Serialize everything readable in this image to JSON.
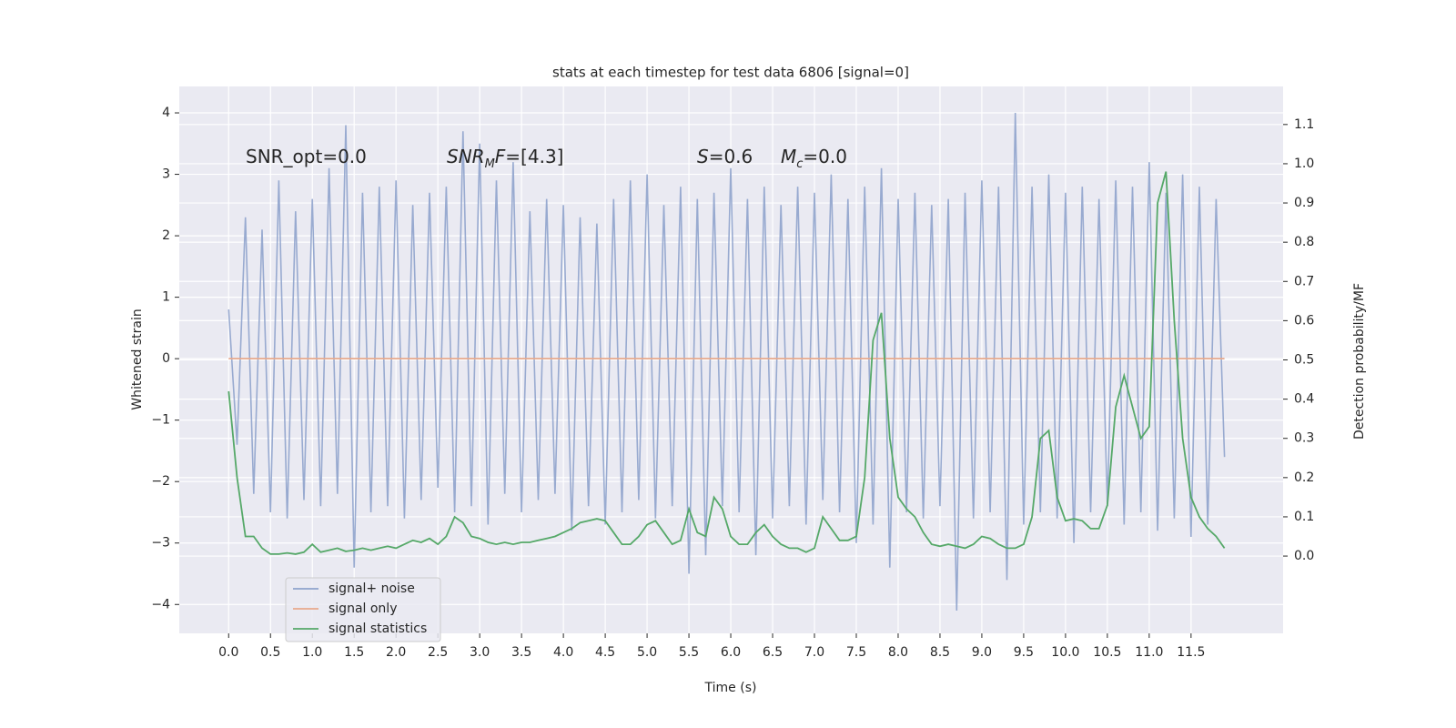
{
  "chart_data": {
    "type": "line",
    "title": "stats at each timestep for test data 6806 [signal=0]",
    "xlabel": "Time (s)",
    "ylabel": "Whitened strain",
    "y2label": "Detection probability/MF",
    "grid": true,
    "legend": "lower left",
    "background": "#eaeaf2",
    "xlim": [
      -0.59,
      12.6
    ],
    "ylim": [
      -4.47,
      4.43
    ],
    "y2lim": [
      -0.197,
      1.197
    ],
    "xticks": [
      {
        "value": 0,
        "label": "0.0"
      },
      0.5,
      {
        "value": 1,
        "label": "1.0"
      },
      1.5,
      {
        "value": 2,
        "label": "2.0"
      },
      2.5,
      {
        "value": 3,
        "label": "3.0"
      },
      3.5,
      {
        "value": 4,
        "label": "4.0"
      },
      4.5,
      {
        "value": 5,
        "label": "5.0"
      },
      5.5,
      {
        "value": 6,
        "label": "6.0"
      },
      6.5,
      {
        "value": 7,
        "label": "7.0"
      },
      7.5,
      {
        "value": 8,
        "label": "8.0"
      },
      8.5,
      {
        "value": 9,
        "label": "9.0"
      },
      9.5,
      {
        "value": 10,
        "label": "10.0"
      },
      10.5,
      {
        "value": 11,
        "label": "11.0"
      },
      11.5
    ],
    "yticks": [
      {
        "value": -4,
        "label": "−4"
      },
      {
        "value": -3,
        "label": "−3"
      },
      {
        "value": -2,
        "label": "−2"
      },
      {
        "value": -1,
        "label": "−1"
      },
      0,
      1,
      2,
      3,
      4
    ],
    "y2ticks": [
      {
        "value": 0,
        "label": "0.0"
      },
      0.1,
      0.2,
      0.3,
      0.4,
      0.5,
      0.6,
      0.7,
      0.8,
      0.9,
      {
        "value": 1,
        "label": "1.0"
      },
      1.1
    ],
    "annotations": [
      [
        {
          "text": "SNR_opt=0.0",
          "style": "normal"
        }
      ],
      [
        {
          "text": "SNR",
          "style": "italic"
        },
        {
          "text": "M",
          "style": "sub"
        },
        {
          "text": "F",
          "style": "italic"
        },
        {
          "text": "=[4.3]",
          "style": "normal"
        }
      ],
      [
        {
          "text": "S",
          "style": "italic"
        },
        {
          "text": "=0.6",
          "style": "normal"
        }
      ],
      [
        {
          "text": "M",
          "style": "italic"
        },
        {
          "text": "c",
          "style": "sub"
        },
        {
          "text": "=0.0",
          "style": "normal"
        }
      ]
    ],
    "x": [
      0,
      0.1,
      0.2,
      0.3,
      0.4,
      0.5,
      0.6,
      0.7,
      0.8,
      0.9,
      1,
      1.1,
      1.2,
      1.3,
      1.4,
      1.5,
      1.6,
      1.7,
      1.8,
      1.9,
      2,
      2.1,
      2.2,
      2.3,
      2.4,
      2.5,
      2.6,
      2.7,
      2.8,
      2.9,
      3,
      3.1,
      3.2,
      3.3,
      3.4,
      3.5,
      3.6,
      3.7,
      3.8,
      3.9,
      4,
      4.1,
      4.2,
      4.3,
      4.4,
      4.5,
      4.6,
      4.7,
      4.8,
      4.9,
      5,
      5.1,
      5.2,
      5.3,
      5.4,
      5.5,
      5.6,
      5.7,
      5.8,
      5.9,
      6,
      6.1,
      6.2,
      6.3,
      6.4,
      6.5,
      6.6,
      6.7,
      6.8,
      6.9,
      7,
      7.1,
      7.2,
      7.3,
      7.4,
      7.5,
      7.6,
      7.7,
      7.8,
      7.9,
      8,
      8.1,
      8.2,
      8.3,
      8.4,
      8.5,
      8.6,
      8.7,
      8.8,
      8.9,
      9,
      9.1,
      9.2,
      9.3,
      9.4,
      9.5,
      9.6,
      9.7,
      9.8,
      9.9,
      10,
      10.1,
      10.2,
      10.3,
      10.4,
      10.5,
      10.6,
      10.7,
      10.8,
      10.9,
      11,
      11.1,
      11.2,
      11.3,
      11.4,
      11.5,
      11.6,
      11.7,
      11.8,
      11.9
    ],
    "series": [
      {
        "name": "signal+ noise",
        "color": "#8fa3cc",
        "values": [
          0.8,
          -1.4,
          2.3,
          -2.2,
          2.1,
          -2.5,
          2.9,
          -2.6,
          2.4,
          -2.3,
          2.6,
          -2.4,
          3.1,
          -2.2,
          3.8,
          -3.4,
          2.7,
          -2.5,
          2.8,
          -2.4,
          2.9,
          -2.6,
          2.5,
          -2.3,
          2.7,
          -2.1,
          2.8,
          -2.5,
          3.7,
          -2.4,
          3.5,
          -2.7,
          2.9,
          -2.2,
          3.2,
          -2.5,
          2.4,
          -2.3,
          2.6,
          -2.2,
          2.5,
          -2.8,
          2.3,
          -2.4,
          2.2,
          -2.7,
          2.6,
          -2.5,
          2.9,
          -2.3,
          3.0,
          -2.6,
          2.5,
          -2.4,
          2.8,
          -3.5,
          2.6,
          -3.2,
          2.7,
          -2.4,
          3.1,
          -2.5,
          2.6,
          -3.2,
          2.8,
          -2.6,
          2.5,
          -2.4,
          2.8,
          -2.7,
          2.7,
          -2.3,
          3.0,
          -2.5,
          2.6,
          -3.0,
          2.8,
          -2.7,
          3.1,
          -3.4,
          2.6,
          -2.5,
          2.7,
          -2.6,
          2.5,
          -2.4,
          2.6,
          -4.1,
          2.7,
          -2.6,
          2.9,
          -2.5,
          2.8,
          -3.6,
          4.0,
          -2.7,
          2.8,
          -2.5,
          3.0,
          -2.6,
          2.7,
          -3.0,
          2.8,
          -2.5,
          2.6,
          -2.4,
          2.9,
          -2.7,
          2.8,
          -2.5,
          3.2,
          -2.8,
          2.7,
          -2.6,
          3.0,
          -2.9,
          2.8,
          -2.7,
          2.6,
          -1.6
        ]
      },
      {
        "name": "signal only",
        "color": "#e8a98c",
        "values": [
          0,
          0,
          0,
          0,
          0,
          0,
          0,
          0,
          0,
          0,
          0,
          0,
          0,
          0,
          0,
          0,
          0,
          0,
          0,
          0,
          0,
          0,
          0,
          0,
          0,
          0,
          0,
          0,
          0,
          0,
          0,
          0,
          0,
          0,
          0,
          0,
          0,
          0,
          0,
          0,
          0,
          0,
          0,
          0,
          0,
          0,
          0,
          0,
          0,
          0,
          0,
          0,
          0,
          0,
          0,
          0,
          0,
          0,
          0,
          0,
          0,
          0,
          0,
          0,
          0,
          0,
          0,
          0,
          0,
          0,
          0,
          0,
          0,
          0,
          0,
          0,
          0,
          0,
          0,
          0,
          0,
          0,
          0,
          0,
          0,
          0,
          0,
          0,
          0,
          0,
          0,
          0,
          0,
          0,
          0,
          0,
          0,
          0,
          0,
          0,
          0,
          0,
          0,
          0,
          0,
          0,
          0,
          0,
          0,
          0,
          0,
          0,
          0,
          0,
          0,
          0,
          0,
          0,
          0,
          0
        ]
      },
      {
        "name": "signal statistics",
        "color": "#55a868",
        "axis": "y2",
        "values": [
          0.42,
          0.2,
          0.05,
          0.05,
          0.02,
          0.005,
          0.005,
          0.008,
          0.005,
          0.01,
          0.03,
          0.01,
          0.015,
          0.02,
          0.012,
          0.015,
          0.02,
          0.015,
          0.02,
          0.025,
          0.02,
          0.03,
          0.04,
          0.035,
          0.045,
          0.03,
          0.05,
          0.1,
          0.085,
          0.05,
          0.045,
          0.035,
          0.03,
          0.035,
          0.03,
          0.035,
          0.035,
          0.04,
          0.045,
          0.05,
          0.06,
          0.07,
          0.085,
          0.09,
          0.095,
          0.09,
          0.06,
          0.03,
          0.03,
          0.05,
          0.08,
          0.09,
          0.06,
          0.03,
          0.04,
          0.12,
          0.06,
          0.05,
          0.15,
          0.12,
          0.05,
          0.03,
          0.03,
          0.06,
          0.08,
          0.05,
          0.03,
          0.02,
          0.02,
          0.01,
          0.02,
          0.1,
          0.07,
          0.04,
          0.04,
          0.05,
          0.2,
          0.55,
          0.62,
          0.3,
          0.15,
          0.12,
          0.1,
          0.06,
          0.03,
          0.025,
          0.03,
          0.025,
          0.02,
          0.03,
          0.05,
          0.045,
          0.03,
          0.02,
          0.02,
          0.03,
          0.1,
          0.3,
          0.32,
          0.15,
          0.09,
          0.095,
          0.09,
          0.07,
          0.07,
          0.13,
          0.38,
          0.46,
          0.38,
          0.3,
          0.33,
          0.9,
          0.98,
          0.6,
          0.3,
          0.15,
          0.1,
          0.07,
          0.05,
          0.02
        ]
      }
    ]
  }
}
